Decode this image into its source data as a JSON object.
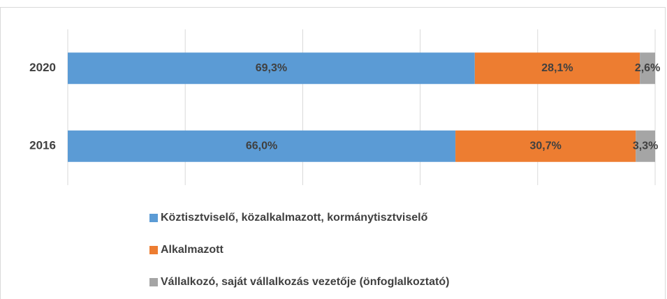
{
  "chart_data": {
    "type": "stacked-bar-horizontal",
    "categories": [
      "2020",
      "2016"
    ],
    "series": [
      {
        "name": "Köztisztviselő, közalkalmazott, kormánytisztviselő",
        "color": "#5b9bd5",
        "values": [
          69.3,
          66.0
        ],
        "value_labels": [
          "69,3%",
          "66,0%"
        ]
      },
      {
        "name": "Alkalmazott",
        "color": "#ed7d31",
        "values": [
          28.1,
          30.7
        ],
        "value_labels": [
          "28,1%",
          "30,7%"
        ]
      },
      {
        "name": "Vállalkozó, saját vállalkozás vezetője (önfoglalkoztató)",
        "color": "#a5a5a5",
        "values": [
          2.6,
          3.3
        ],
        "value_labels": [
          "2,6%",
          "3,3%"
        ]
      }
    ],
    "xlim": [
      0,
      100
    ],
    "xticks": [
      0,
      20,
      40,
      60,
      80,
      100
    ],
    "grid": true,
    "legend": "bottom"
  }
}
